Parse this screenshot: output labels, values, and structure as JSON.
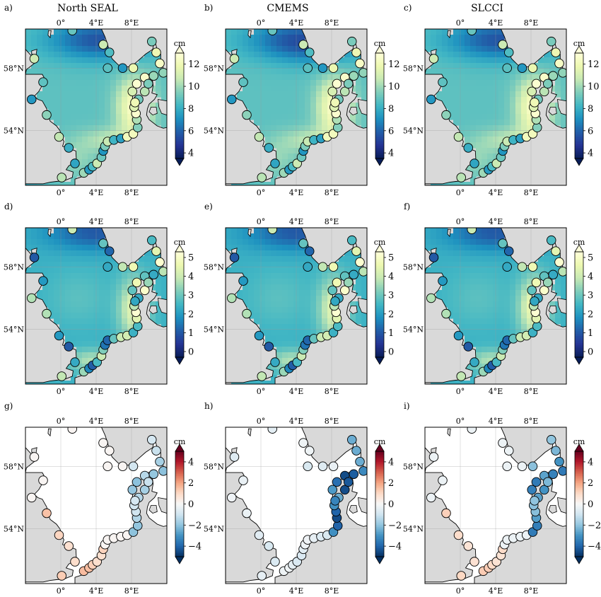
{
  "columns": [
    "North SEAL",
    "CMEMS",
    "SLCCI"
  ],
  "rows": [
    {
      "letters": [
        "a)",
        "b)",
        "c)"
      ],
      "cbar_unit": "cm",
      "cbar_ticks": [
        "4",
        "6",
        "8",
        "10",
        "12"
      ],
      "vmin": 3.5,
      "vmax": 13.0,
      "palette": "YlGnBu",
      "field": "mean"
    },
    {
      "letters": [
        "d)",
        "e)",
        "f)"
      ],
      "cbar_unit": "cm",
      "cbar_ticks": [
        "0",
        "1",
        "2",
        "3",
        "4",
        "5"
      ],
      "vmin": -0.3,
      "vmax": 5.3,
      "palette": "YlGnBu",
      "field": "trend"
    },
    {
      "letters": [
        "g)",
        "h)",
        "i)"
      ],
      "cbar_unit": "cm",
      "cbar_ticks": [
        "−4",
        "−2",
        "0",
        "2",
        "4"
      ],
      "vmin": -5.0,
      "vmax": 5.0,
      "palette": "RdBu",
      "field": "diff"
    }
  ],
  "map": {
    "top_lon_labels": [
      "0°",
      "4°E",
      "8°E"
    ],
    "bottom_lon_labels": [
      "0°",
      "4°E",
      "8°E"
    ],
    "lat_labels": [
      "58°N",
      "54°N"
    ],
    "land_color": "#d9d9d9",
    "coast_color": "#000000"
  },
  "chart_data": {
    "type": "heatmap",
    "description_axes": {
      "lon_range": [
        -4,
        12
      ],
      "lat_range": [
        50.5,
        60.5
      ]
    },
    "tide_gauges": [
      {
        "lon": 1.3,
        "lat": 60.4
      },
      {
        "lon": 4.8,
        "lat": 59.5
      },
      {
        "lon": 5.5,
        "lat": 59.0
      },
      {
        "lon": 10.3,
        "lat": 59.7
      },
      {
        "lon": 10.8,
        "lat": 59.0
      },
      {
        "lon": 11.2,
        "lat": 58.3
      },
      {
        "lon": 11.6,
        "lat": 57.7
      },
      {
        "lon": 10.5,
        "lat": 57.5
      },
      {
        "lon": 9.5,
        "lat": 57.4
      },
      {
        "lon": 8.2,
        "lat": 58.0
      },
      {
        "lon": 7.0,
        "lat": 58.0
      },
      {
        "lon": 5.3,
        "lat": 58.0
      },
      {
        "lon": -3.0,
        "lat": 58.6
      },
      {
        "lon": -2.0,
        "lat": 57.1
      },
      {
        "lon": -3.3,
        "lat": 56.0
      },
      {
        "lon": -1.6,
        "lat": 55.0
      },
      {
        "lon": -0.2,
        "lat": 53.6
      },
      {
        "lon": 0.9,
        "lat": 52.9
      },
      {
        "lon": 1.6,
        "lat": 51.9
      },
      {
        "lon": 0.1,
        "lat": 51.0
      },
      {
        "lon": 2.6,
        "lat": 51.3
      },
      {
        "lon": 3.2,
        "lat": 51.5
      },
      {
        "lon": 3.6,
        "lat": 51.7
      },
      {
        "lon": 4.1,
        "lat": 51.9
      },
      {
        "lon": 4.6,
        "lat": 52.3
      },
      {
        "lon": 4.8,
        "lat": 52.7
      },
      {
        "lon": 5.0,
        "lat": 53.0
      },
      {
        "lon": 5.3,
        "lat": 53.3
      },
      {
        "lon": 6.0,
        "lat": 53.4
      },
      {
        "lon": 6.8,
        "lat": 53.5
      },
      {
        "lon": 7.5,
        "lat": 53.6
      },
      {
        "lon": 8.2,
        "lat": 53.8
      },
      {
        "lon": 8.7,
        "lat": 54.2
      },
      {
        "lon": 8.6,
        "lat": 54.7
      },
      {
        "lon": 8.5,
        "lat": 55.1
      },
      {
        "lon": 8.3,
        "lat": 55.5
      },
      {
        "lon": 8.8,
        "lat": 56.0
      },
      {
        "lon": 8.1,
        "lat": 56.5
      },
      {
        "lon": 8.6,
        "lat": 57.0
      },
      {
        "lon": 9.5,
        "lat": 56.5
      },
      {
        "lon": 9.9,
        "lat": 57.0
      },
      {
        "lon": 8.4,
        "lat": 55.8
      }
    ]
  }
}
